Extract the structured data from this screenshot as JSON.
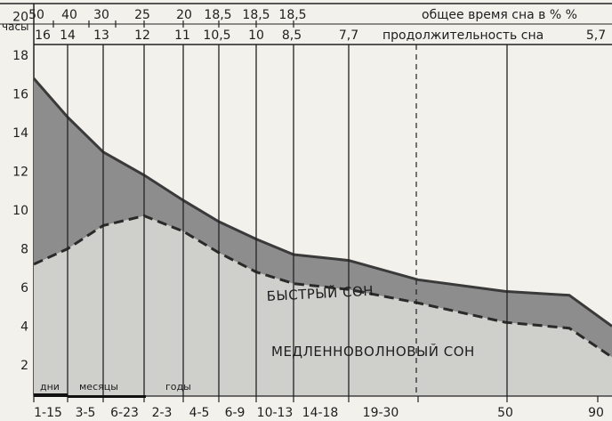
{
  "chart_data": {
    "type": "area",
    "ylabel": "часы",
    "ylim": [
      0,
      24
    ],
    "yticks": [
      "2",
      "4",
      "6",
      "8",
      "10",
      "12",
      "14",
      "16",
      "18",
      "20",
      "22",
      "24"
    ],
    "x_labels": [
      "1-15",
      "3-5",
      "6-23",
      "2-3",
      "4-5",
      "6-9",
      "10-13",
      "14-18",
      "19-30",
      "50",
      "90"
    ],
    "top_row": {
      "caption": "общее время сна в % %",
      "values": [
        "50",
        "40",
        "30",
        "25",
        "20",
        "18,5",
        "18,5",
        "18,5"
      ]
    },
    "second_row": {
      "caption": "продолжительность сна",
      "values": [
        "16",
        "14",
        "13",
        "12",
        "11",
        "10,5",
        "10",
        "8,5",
        "7,7",
        "5,7"
      ]
    },
    "periods": [
      "дни",
      "месяцы",
      "годы"
    ],
    "series": [
      {
        "name": "МЕДЛЕННОВОЛНОВЫЙ СОН",
        "values": [
          7.2,
          8.0,
          9.2,
          9.7,
          8.9,
          7.8,
          6.8,
          6.2,
          5.9,
          5.2,
          4.2,
          3.9,
          2.4
        ]
      },
      {
        "name": "БЫСТРЫЙ СОН",
        "total_values": [
          16.8,
          14.8,
          13.0,
          11.8,
          10.5,
          9.4,
          8.5,
          7.7,
          7.4,
          6.4,
          5.8,
          5.6,
          4.0
        ]
      }
    ],
    "colors": {
      "rem": "#8d8d8d",
      "nrem": "#cfcfcc",
      "line": "#3a3a3a",
      "dashed": "#2a2a2a"
    }
  }
}
